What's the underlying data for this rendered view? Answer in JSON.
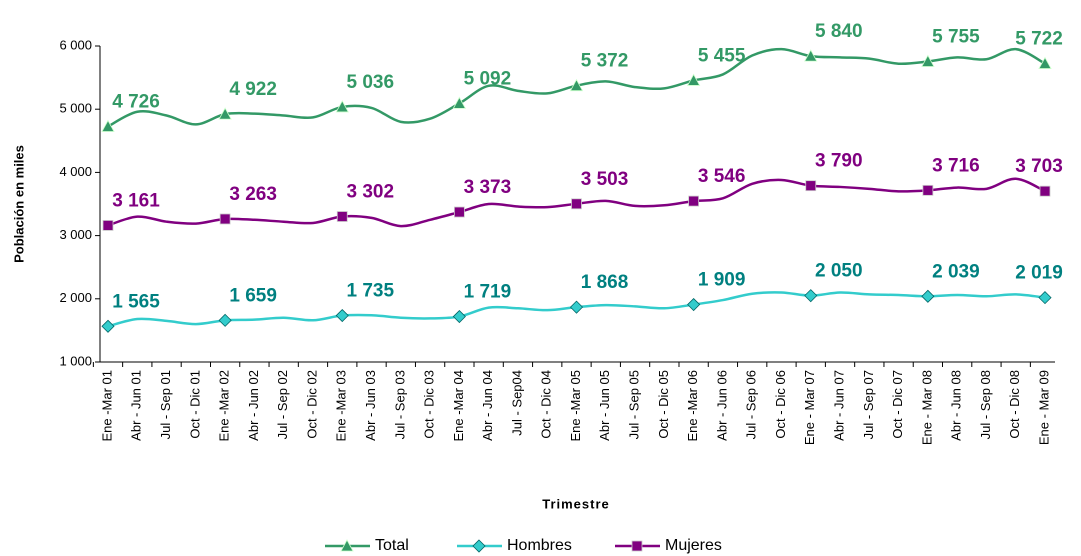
{
  "chart_data": {
    "type": "line",
    "xlabel": "Trimestre",
    "ylabel": "Población en miles",
    "categories": [
      "Ene -Mar 01",
      "Abr - Jun 01",
      "Jul - Sep 01",
      "Oct - Dic 01",
      "Ene -Mar 02",
      "Abr - Jun 02",
      "Jul - Sep 02",
      "Oct - Dic 02",
      "Ene -Mar 03",
      "Abr - Jun 03",
      "Jul - Sep 03",
      "Oct - Dic 03",
      "Ene -Mar 04",
      "Abr - Jun 04",
      "Jul - Sep04",
      "Oct - Dic 04",
      "Ene -Mar 05",
      "Abr - Jun 05",
      "Jul - Sep 05",
      "Oct - Dic 05",
      "Ene -Mar 06",
      "Abr - Jun 06",
      "Jul - Sep 06",
      "Oct - Dic 06",
      "Ene - Mar 07",
      "Abr - Jun 07",
      "Jul - Sep 07",
      "Oct - Dic 07",
      "Ene - Mar 08",
      "Abr - Jun 08",
      "Jul - Sep 08",
      "Oct - Dic 08",
      "Ene - Mar 09"
    ],
    "series": [
      {
        "name": "Total",
        "color": "#339966",
        "label_color": "#339966",
        "marker": "triangle",
        "values": [
          4726,
          4960,
          4900,
          4760,
          4922,
          4930,
          4900,
          4870,
          5036,
          5020,
          4800,
          4850,
          5092,
          5370,
          5290,
          5250,
          5372,
          5440,
          5350,
          5330,
          5455,
          5550,
          5850,
          5950,
          5840,
          5820,
          5800,
          5720,
          5755,
          5820,
          5790,
          5950,
          5722
        ],
        "value_labels": [
          "4 726",
          null,
          null,
          null,
          "4 922",
          null,
          null,
          null,
          "5 036",
          null,
          null,
          null,
          "5 092",
          null,
          null,
          null,
          "5 372",
          null,
          null,
          null,
          "5 455",
          null,
          null,
          null,
          "5 840",
          null,
          null,
          null,
          "5 755",
          null,
          null,
          null,
          "5 722"
        ]
      },
      {
        "name": "Hombres",
        "color": "#33cccc",
        "label_color": "#008080",
        "marker": "diamond",
        "values": [
          1565,
          1680,
          1650,
          1600,
          1659,
          1670,
          1700,
          1660,
          1735,
          1740,
          1700,
          1690,
          1719,
          1860,
          1850,
          1820,
          1868,
          1900,
          1880,
          1850,
          1909,
          1980,
          2080,
          2100,
          2050,
          2100,
          2070,
          2060,
          2039,
          2060,
          2040,
          2070,
          2019
        ],
        "value_labels": [
          "1 565",
          null,
          null,
          null,
          "1 659",
          null,
          null,
          null,
          "1 735",
          null,
          null,
          null,
          "1 719",
          null,
          null,
          null,
          "1 868",
          null,
          null,
          null,
          "1 909",
          null,
          null,
          null,
          "2 050",
          null,
          null,
          null,
          "2 039",
          null,
          null,
          null,
          "2 019"
        ]
      },
      {
        "name": "Mujeres",
        "color": "#800080",
        "label_color": "#800080",
        "marker": "square",
        "values": [
          3161,
          3300,
          3220,
          3190,
          3263,
          3250,
          3220,
          3200,
          3302,
          3280,
          3150,
          3250,
          3373,
          3500,
          3460,
          3450,
          3503,
          3550,
          3470,
          3480,
          3546,
          3590,
          3820,
          3880,
          3790,
          3770,
          3740,
          3700,
          3716,
          3760,
          3740,
          3900,
          3703
        ],
        "value_labels": [
          "3 161",
          null,
          null,
          null,
          "3 263",
          null,
          null,
          null,
          "3 302",
          null,
          null,
          null,
          "3 373",
          null,
          null,
          null,
          "3 503",
          null,
          null,
          null,
          "3 546",
          null,
          null,
          null,
          "3 790",
          null,
          null,
          null,
          "3 716",
          null,
          null,
          null,
          "3 703"
        ]
      }
    ],
    "ylim": [
      1000,
      6000
    ],
    "yticks": [
      {
        "value": 1000,
        "label": "1 000"
      },
      {
        "value": 2000,
        "label": "2 000"
      },
      {
        "value": 3000,
        "label": "3 000"
      },
      {
        "value": 4000,
        "label": "4 000"
      },
      {
        "value": 5000,
        "label": "5 000"
      },
      {
        "value": 6000,
        "label": "6 000"
      }
    ],
    "legend": "bottom",
    "grid": false
  }
}
